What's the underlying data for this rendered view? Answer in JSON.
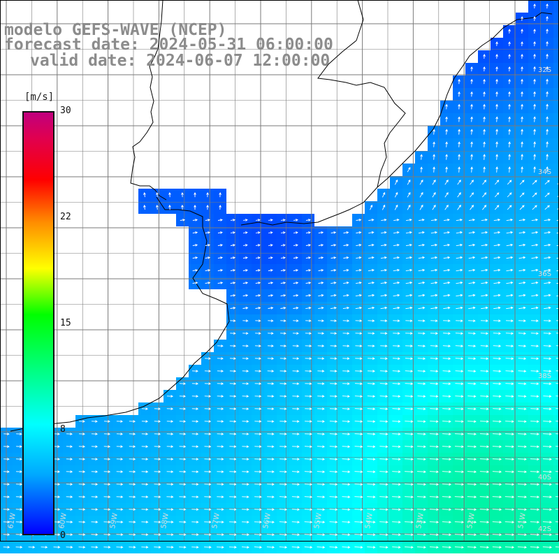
{
  "title": {
    "line1": "modelo GEFS-WAVE (NCEP)",
    "line2": "forecast date: 2024-05-31 06:00:00",
    "line3": "valid date: 2024-06-07 12:00:00"
  },
  "colorbar": {
    "unit": "[m/s]",
    "ticks": [
      "30",
      "22",
      "15",
      "8",
      "0"
    ],
    "stops": [
      "#0000ff",
      "#00a8ff",
      "#00ffff",
      "#00ff00",
      "#ffff00",
      "#ff8c00",
      "#ff0000",
      "#c0007e"
    ]
  },
  "axes": {
    "lat_labels": [
      "32S",
      "34S",
      "36S",
      "38S",
      "40S",
      "42S"
    ],
    "lon_labels": [
      "61W",
      "60W",
      "59W",
      "58W",
      "57W",
      "56W",
      "55W",
      "54W",
      "53W",
      "52W",
      "51W"
    ]
  },
  "colors": {
    "land": "#ffffff",
    "coast": "#000000",
    "grid": "#7a7a7a",
    "arrows": "#ffffff"
  }
}
